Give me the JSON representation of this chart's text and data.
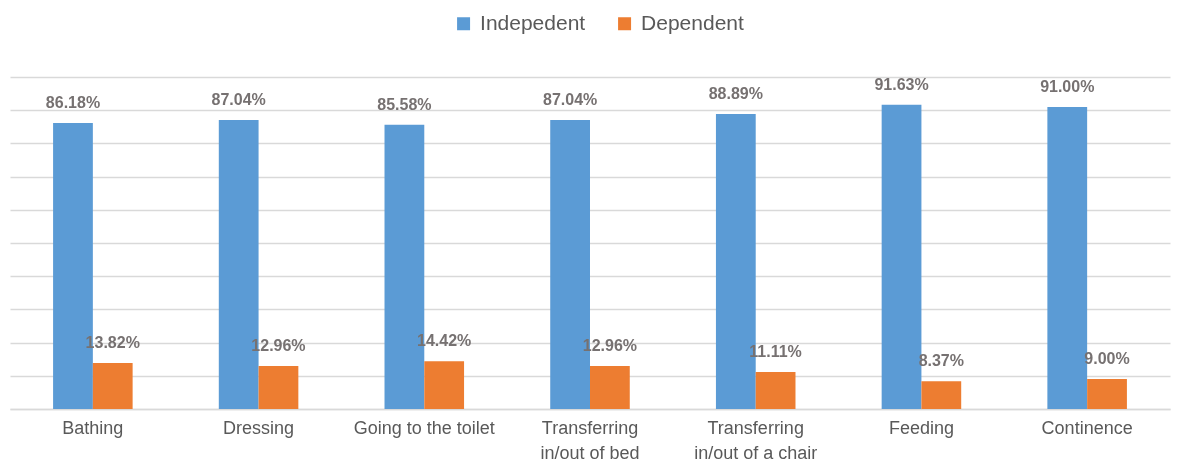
{
  "chart_data": {
    "type": "bar",
    "categories": [
      "Bathing",
      "Dressing",
      "Going to the toilet",
      "Transferring\nin/out of bed",
      "Transferring\nin/out of a chair",
      "Feeding",
      "Continence"
    ],
    "series": [
      {
        "name": "Indepedent",
        "color": "#5b9bd5",
        "values": [
          86.18,
          87.04,
          85.58,
          87.04,
          88.89,
          91.63,
          91.0
        ],
        "value_labels": [
          "86.18%",
          "87.04%",
          "85.58%",
          "87.04%",
          "88.89%",
          "91.63%",
          "91.00%"
        ]
      },
      {
        "name": "Dependent",
        "color": "#ed7d31",
        "values": [
          13.82,
          12.96,
          14.42,
          12.96,
          11.11,
          8.37,
          9.0
        ],
        "value_labels": [
          "13.82%",
          "12.96%",
          "14.42%",
          "12.96%",
          "11.11%",
          "8.37%",
          "9.00%"
        ]
      }
    ],
    "ylim": [
      0,
      100
    ],
    "yticks": [
      0,
      10,
      20,
      30,
      40,
      50,
      60,
      70,
      80,
      90,
      100
    ],
    "tick_labels": "x",
    "grid": "y",
    "legend": "top"
  }
}
